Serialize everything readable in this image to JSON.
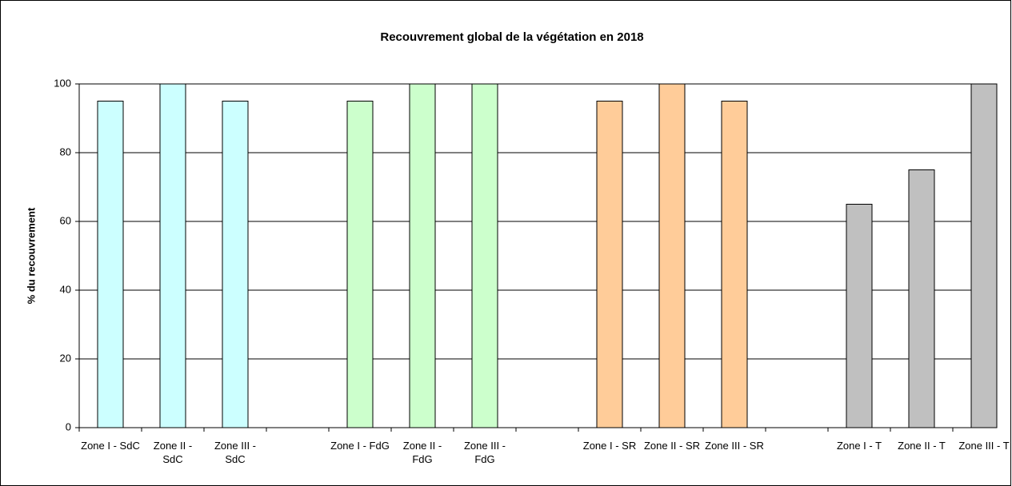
{
  "chart_data": {
    "type": "bar",
    "title": "Recouvrement global de la végétation en 2018",
    "y_label": "% du recouvrement",
    "categories": [
      "Zone I - SdC",
      "Zone II - SdC",
      "Zone III - SdC",
      null,
      "Zone I - FdG",
      "Zone II - FdG",
      "Zone III - FdG",
      null,
      "Zone I - SR",
      "Zone II - SR",
      "Zone III - SR",
      null,
      "Zone I - T",
      "Zone II - T",
      "Zone III - T"
    ],
    "values": [
      95,
      100,
      95,
      null,
      95,
      100,
      100,
      null,
      95,
      100,
      95,
      null,
      65,
      75,
      100
    ],
    "colors": [
      "#ccffff",
      "#ccffff",
      "#ccffff",
      null,
      "#ccffcc",
      "#ccffcc",
      "#ccffcc",
      null,
      "#ffcc99",
      "#ffcc99",
      "#ffcc99",
      null,
      "#c0c0c0",
      "#c0c0c0",
      "#c0c0c0"
    ],
    "ylim": [
      0,
      100
    ],
    "yticks": [
      0,
      20,
      40,
      60,
      80,
      100
    ],
    "grid": true
  }
}
